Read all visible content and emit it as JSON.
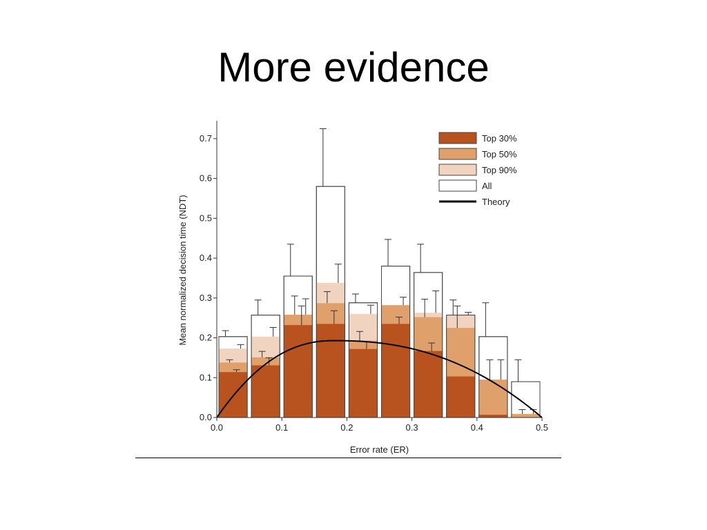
{
  "slide": {
    "title": "More evidence"
  },
  "chart_data": {
    "type": "bar",
    "xlabel": "Error rate (ER)",
    "ylabel": "Mean normalized decision time (NDT)",
    "xlim": [
      0.0,
      0.5
    ],
    "ylim": [
      0.0,
      0.75
    ],
    "xticks": [
      "0.0",
      "0.1",
      "0.2",
      "0.3",
      "0.4",
      "0.5"
    ],
    "yticks": [
      "0.0",
      "0.1",
      "0.2",
      "0.3",
      "0.4",
      "0.5",
      "0.6",
      "0.7"
    ],
    "bin_width": 0.05,
    "bin_centers": [
      0.025,
      0.075,
      0.125,
      0.175,
      0.225,
      0.275,
      0.325,
      0.375,
      0.425,
      0.475
    ],
    "series": [
      {
        "name": "All",
        "color": "#ffffff",
        "values": [
          0.203,
          0.257,
          0.355,
          0.58,
          0.288,
          0.38,
          0.364,
          0.257,
          0.203,
          0.09
        ],
        "err_upper": [
          0.218,
          0.295,
          0.435,
          0.725,
          0.31,
          0.447,
          0.435,
          0.295,
          0.288,
          0.145
        ]
      },
      {
        "name": "Top 90%",
        "color": "#f1d4c0",
        "values": [
          0.173,
          0.203,
          0.258,
          0.338,
          0.26,
          0.282,
          0.263,
          0.257,
          0.095,
          0.009
        ],
        "err_upper": [
          0.183,
          0.226,
          0.298,
          0.385,
          0.282,
          0.302,
          0.318,
          0.264,
          0.145,
          0.02
        ]
      },
      {
        "name": "Top 50%",
        "color": "#e0a06b",
        "values": [
          0.138,
          0.151,
          0.258,
          0.287,
          0.193,
          0.282,
          0.252,
          0.225,
          0.095,
          0.009
        ],
        "err_upper": [
          0.145,
          0.166,
          0.305,
          0.316,
          0.216,
          0.275,
          0.297,
          0.28,
          0.145,
          0.02
        ]
      },
      {
        "name": "Top 30%",
        "color": "#b8531f",
        "values": [
          0.114,
          0.131,
          0.232,
          0.235,
          0.172,
          0.235,
          0.167,
          0.103,
          0.007,
          0.0
        ],
        "err_upper": [
          0.12,
          0.15,
          0.28,
          0.268,
          0.19,
          0.252,
          0.187,
          0.0,
          0.0,
          0.0
        ]
      }
    ],
    "theory": {
      "name": "Theory",
      "color": "#000000"
    },
    "legend": {
      "position": "top-right",
      "entries": [
        {
          "label": "Top 30%",
          "color": "#b8531f",
          "kind": "box"
        },
        {
          "label": "Top 50%",
          "color": "#e0a06b",
          "kind": "box"
        },
        {
          "label": "Top 90%",
          "color": "#f1d4c0",
          "kind": "box"
        },
        {
          "label": "All",
          "color": "#ffffff",
          "kind": "box"
        },
        {
          "label": "Theory",
          "color": "#000000",
          "kind": "line"
        }
      ]
    }
  }
}
